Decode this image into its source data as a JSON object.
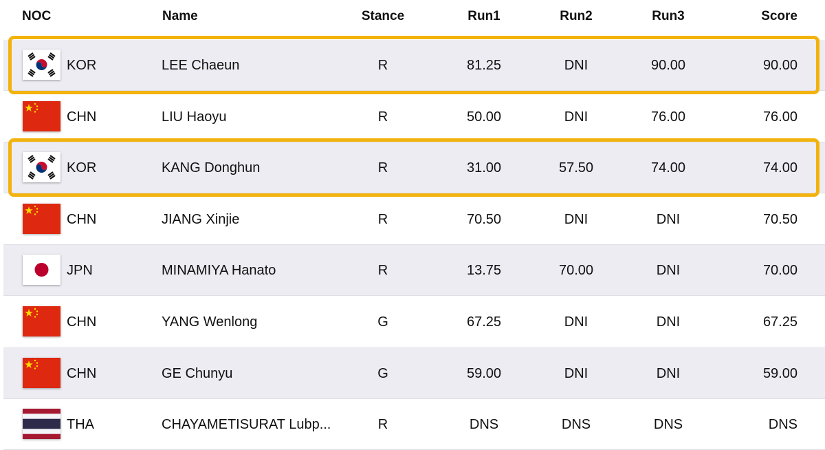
{
  "header": {
    "noc": "NOC",
    "name": "Name",
    "stance": "Stance",
    "run1": "Run1",
    "run2": "Run2",
    "run3": "Run3",
    "score": "Score"
  },
  "rows": [
    {
      "flag": "korea-flag-icon",
      "noc": "KOR",
      "name": "LEE Chaeun",
      "stance": "R",
      "run1": "81.25",
      "run2": "DNI",
      "run3": "90.00",
      "score": "90.00",
      "highlighted": true
    },
    {
      "flag": "china-flag-icon",
      "noc": "CHN",
      "name": "LIU Haoyu",
      "stance": "R",
      "run1": "50.00",
      "run2": "DNI",
      "run3": "76.00",
      "score": "76.00",
      "highlighted": false
    },
    {
      "flag": "korea-flag-icon",
      "noc": "KOR",
      "name": "KANG Donghun",
      "stance": "R",
      "run1": "31.00",
      "run2": "57.50",
      "run3": "74.00",
      "score": "74.00",
      "highlighted": true
    },
    {
      "flag": "china-flag-icon",
      "noc": "CHN",
      "name": "JIANG Xinjie",
      "stance": "R",
      "run1": "70.50",
      "run2": "DNI",
      "run3": "DNI",
      "score": "70.50",
      "highlighted": false
    },
    {
      "flag": "japan-flag-icon",
      "noc": "JPN",
      "name": "MINAMIYA Hanato",
      "stance": "R",
      "run1": "13.75",
      "run2": "70.00",
      "run3": "DNI",
      "score": "70.00",
      "highlighted": false
    },
    {
      "flag": "china-flag-icon",
      "noc": "CHN",
      "name": "YANG Wenlong",
      "stance": "G",
      "run1": "67.25",
      "run2": "DNI",
      "run3": "DNI",
      "score": "67.25",
      "highlighted": false
    },
    {
      "flag": "china-flag-icon",
      "noc": "CHN",
      "name": "GE Chunyu",
      "stance": "G",
      "run1": "59.00",
      "run2": "DNI",
      "run3": "DNI",
      "score": "59.00",
      "highlighted": false
    },
    {
      "flag": "thailand-flag-icon",
      "noc": "THA",
      "name": "CHAYAMETISURAT Lubp...",
      "stance": "R",
      "run1": "DNS",
      "run2": "DNS",
      "run3": "DNS",
      "score": "DNS",
      "highlighted": false
    }
  ],
  "colors": {
    "highlight_border": "#f3b30e",
    "row_shade": "#ececf2",
    "row_plain": "#ffffff"
  }
}
